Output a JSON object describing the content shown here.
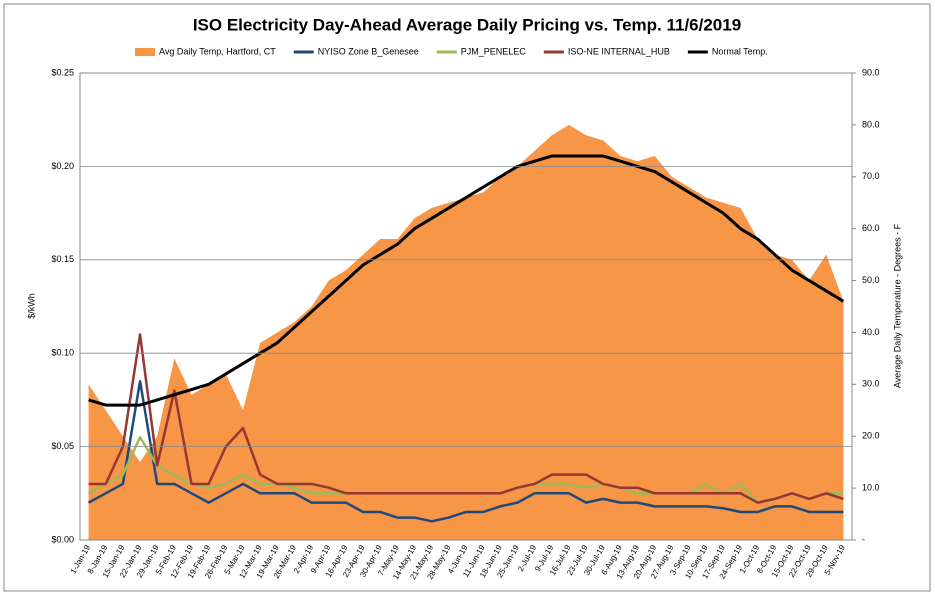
{
  "chart_data": {
    "type": "line",
    "title": "ISO Electricity Day-Ahead Average Daily Pricing vs. Temp. 11/6/2019",
    "y_label": "$/kWh",
    "y2_label": "Average Daily Temperature - Degrees - F",
    "categories": [
      "1-Jan-19",
      "8-Jan-19",
      "15-Jan-19",
      "22-Jan-19",
      "29-Jan-19",
      "5-Feb-19",
      "12-Feb-19",
      "19-Feb-19",
      "26-Feb-19",
      "5-Mar-19",
      "12-Mar-19",
      "19-Mar-19",
      "26-Mar-19",
      "2-Apr-19",
      "9-Apr-19",
      "16-Apr-19",
      "23-Apr-19",
      "30-Apr-19",
      "7-May-19",
      "14-May-19",
      "21-May-19",
      "28-May-19",
      "4-Jun-19",
      "11-Jun-19",
      "18-Jun-19",
      "25-Jun-19",
      "2-Jul-19",
      "9-Jul-19",
      "16-Jul-19",
      "23-Jul-19",
      "30-Jul-19",
      "6-Aug-19",
      "13-Aug-19",
      "20-Aug-19",
      "27-Aug-19",
      "3-Sep-19",
      "10-Sep-19",
      "17-Sep-19",
      "24-Sep-19",
      "1-Oct-19",
      "8-Oct-19",
      "15-Oct-19",
      "22-Oct-19",
      "29-Oct-19",
      "5-Nov-19"
    ],
    "ylim": [
      0,
      0.25
    ],
    "yticks": [
      {
        "value": 0,
        "label": "$0.00"
      },
      {
        "value": 0.05,
        "label": "$0.05"
      },
      {
        "value": 0.1,
        "label": "$0.10"
      },
      {
        "value": 0.15,
        "label": "$0.15"
      },
      {
        "value": 0.2,
        "label": "$0.20"
      },
      {
        "value": 0.25,
        "label": "$0.25"
      }
    ],
    "y2lim": [
      0,
      90
    ],
    "y2ticks": [
      {
        "value": 0,
        "label": "-"
      },
      {
        "value": 10,
        "label": "10.0"
      },
      {
        "value": 20,
        "label": "20.0"
      },
      {
        "value": 30,
        "label": "30.0"
      },
      {
        "value": 40,
        "label": "40.0"
      },
      {
        "value": 50,
        "label": "50.0"
      },
      {
        "value": 60,
        "label": "60.0"
      },
      {
        "value": 70,
        "label": "70.0"
      },
      {
        "value": 80,
        "label": "80.0"
      },
      {
        "value": 90,
        "label": "90.0"
      }
    ],
    "grid": true,
    "legend": "top",
    "series": [
      {
        "name": "Avg Daily Temp, Hartford, CT",
        "type": "area",
        "axis": "y2",
        "color": "#F79646",
        "values": [
          30,
          25,
          20,
          15,
          20,
          35,
          28,
          30,
          32,
          25,
          38,
          40,
          42,
          45,
          50,
          52,
          55,
          58,
          58,
          62,
          64,
          65,
          66,
          67,
          70,
          72,
          75,
          78,
          80,
          78,
          77,
          74,
          73,
          74,
          70,
          68,
          66,
          65,
          64,
          58,
          55,
          54,
          50,
          55,
          46
        ]
      },
      {
        "name": "NYISO Zone B_Genesee",
        "type": "line",
        "color": "#1F497D",
        "values": [
          0.02,
          0.025,
          0.03,
          0.085,
          0.03,
          0.03,
          0.025,
          0.02,
          0.025,
          0.03,
          0.025,
          0.025,
          0.025,
          0.02,
          0.02,
          0.02,
          0.015,
          0.015,
          0.012,
          0.012,
          0.01,
          0.012,
          0.015,
          0.015,
          0.018,
          0.02,
          0.025,
          0.025,
          0.025,
          0.02,
          0.022,
          0.02,
          0.02,
          0.018,
          0.018,
          0.018,
          0.018,
          0.017,
          0.015,
          0.015,
          0.018,
          0.018,
          0.015,
          0.015,
          0.015
        ]
      },
      {
        "name": "PJM_PENELEC",
        "type": "line",
        "color": "#9BBB59",
        "values": [
          0.025,
          0.03,
          0.035,
          0.055,
          0.04,
          0.035,
          0.03,
          0.028,
          0.03,
          0.035,
          0.03,
          0.03,
          0.028,
          0.025,
          0.025,
          0.025,
          0.025,
          0.025,
          0.025,
          0.025,
          0.025,
          0.025,
          0.025,
          0.025,
          0.025,
          0.028,
          0.03,
          0.03,
          0.03,
          0.028,
          0.03,
          0.028,
          0.025,
          0.025,
          0.025,
          0.025,
          0.03,
          0.025,
          0.03,
          0.02,
          0.022,
          0.025,
          0.022,
          0.025,
          0.025
        ]
      },
      {
        "name": "ISO-NE INTERNAL_HUB",
        "type": "line",
        "color": "#953735",
        "values": [
          0.03,
          0.03,
          0.05,
          0.11,
          0.04,
          0.08,
          0.03,
          0.03,
          0.05,
          0.06,
          0.035,
          0.03,
          0.03,
          0.03,
          0.028,
          0.025,
          0.025,
          0.025,
          0.025,
          0.025,
          0.025,
          0.025,
          0.025,
          0.025,
          0.025,
          0.028,
          0.03,
          0.035,
          0.035,
          0.035,
          0.03,
          0.028,
          0.028,
          0.025,
          0.025,
          0.025,
          0.025,
          0.025,
          0.025,
          0.02,
          0.022,
          0.025,
          0.022,
          0.025,
          0.022
        ]
      },
      {
        "name": "Normal Temp.",
        "type": "line",
        "axis": "y2",
        "color": "#000000",
        "width": 3,
        "values": [
          27,
          26,
          26,
          26,
          27,
          28,
          29,
          30,
          32,
          34,
          36,
          38,
          41,
          44,
          47,
          50,
          53,
          55,
          57,
          60,
          62,
          64,
          66,
          68,
          70,
          72,
          73,
          74,
          74,
          74,
          74,
          73,
          72,
          71,
          69,
          67,
          65,
          63,
          60,
          58,
          55,
          52,
          50,
          48,
          46
        ]
      }
    ]
  }
}
